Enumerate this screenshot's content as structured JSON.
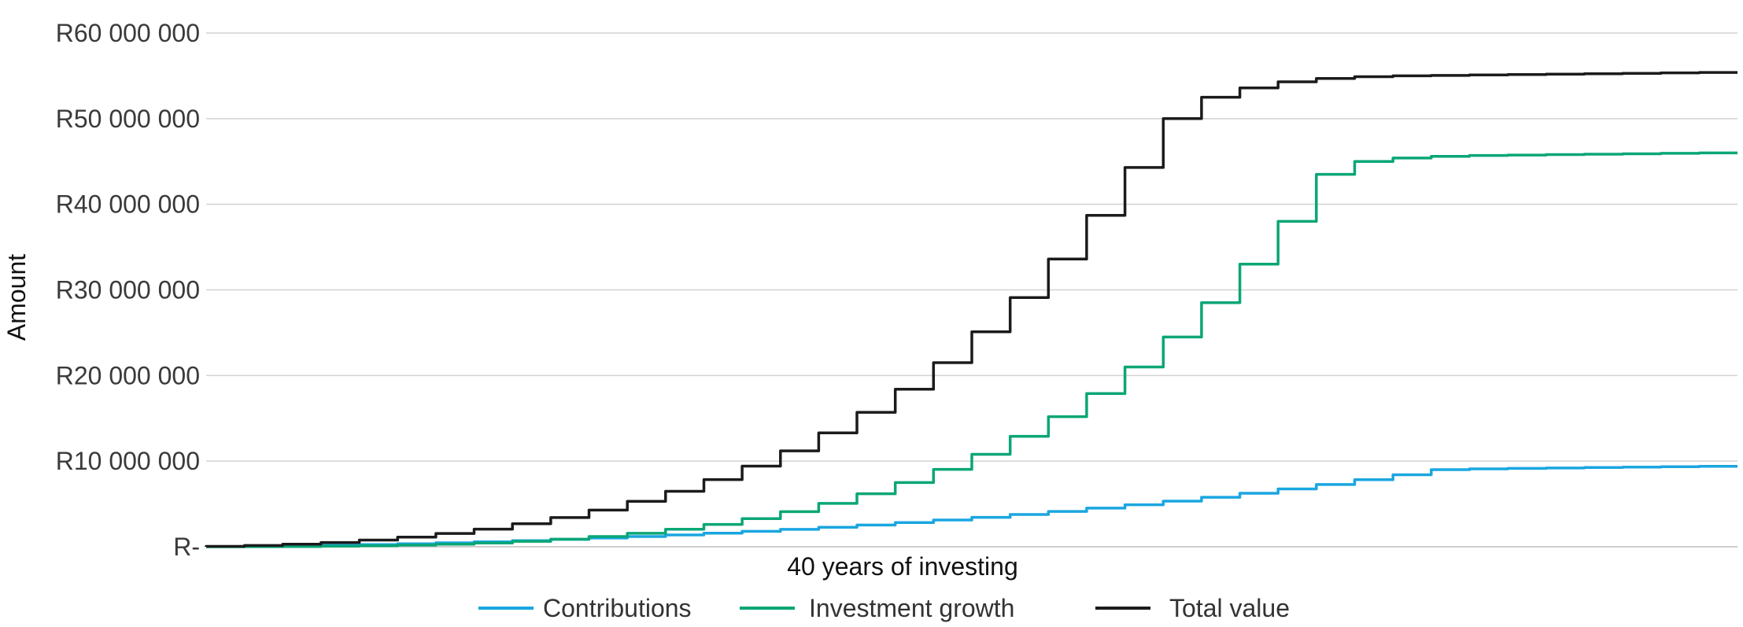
{
  "chart_data": {
    "type": "line",
    "title": "",
    "xlabel": "40 years of investing",
    "ylabel": "Amount",
    "x": [
      0,
      1,
      2,
      3,
      4,
      5,
      6,
      7,
      8,
      9,
      10,
      11,
      12,
      13,
      14,
      15,
      16,
      17,
      18,
      19,
      20,
      21,
      22,
      23,
      24,
      25,
      26,
      27,
      28,
      29,
      30,
      31,
      32,
      33,
      34,
      35,
      36,
      37,
      38,
      39,
      40
    ],
    "ylim": [
      0,
      60000000
    ],
    "yticks": [
      {
        "value": 0,
        "label": "R-"
      },
      {
        "value": 10000000,
        "label": "R10 000 000"
      },
      {
        "value": 20000000,
        "label": "R20 000 000"
      },
      {
        "value": 30000000,
        "label": "R30 000 000"
      },
      {
        "value": 40000000,
        "label": "R40 000 000"
      },
      {
        "value": 50000000,
        "label": "R50 000 000"
      },
      {
        "value": 60000000,
        "label": "R60 000 000"
      }
    ],
    "grid": true,
    "legend_position": "bottom",
    "series": [
      {
        "name": "Contributions",
        "color": "#1aa6e0",
        "values": [
          0,
          20000,
          60000,
          110000,
          180000,
          260000,
          350000,
          460000,
          580000,
          710000,
          860000,
          1020000,
          1190000,
          1380000,
          1580000,
          1800000,
          2030000,
          2280000,
          2540000,
          2820000,
          3120000,
          3440000,
          3770000,
          4130000,
          4510000,
          4910000,
          5330000,
          5780000,
          6250000,
          6750000,
          7270000,
          7830000,
          8410000,
          9000000,
          9100000,
          9150000,
          9200000,
          9250000,
          9300000,
          9350000,
          9400000
        ]
      },
      {
        "name": "Investment growth",
        "color": "#0aa676",
        "values": [
          0,
          0,
          10000,
          30000,
          60000,
          110000,
          190000,
          300000,
          440000,
          630000,
          880000,
          1190000,
          1570000,
          2040000,
          2610000,
          3290000,
          4100000,
          5060000,
          6190000,
          7500000,
          9040000,
          10800000,
          12900000,
          15200000,
          17900000,
          21000000,
          24500000,
          28500000,
          33000000,
          38000000,
          43500000,
          45000000,
          45400000,
          45600000,
          45700000,
          45750000,
          45800000,
          45850000,
          45900000,
          45950000,
          46000000
        ]
      },
      {
        "name": "Total value",
        "color": "#1b1b1d",
        "values": [
          0,
          50000,
          150000,
          300000,
          500000,
          780000,
          1120000,
          1550000,
          2060000,
          2680000,
          3410000,
          4280000,
          5300000,
          6480000,
          7850000,
          9420000,
          11200000,
          13300000,
          15700000,
          18400000,
          21500000,
          25100000,
          29100000,
          33600000,
          38700000,
          44300000,
          50000000,
          52500000,
          53600000,
          54300000,
          54700000,
          54900000,
          55000000,
          55050000,
          55100000,
          55150000,
          55200000,
          55250000,
          55300000,
          55350000,
          55400000
        ]
      }
    ]
  }
}
